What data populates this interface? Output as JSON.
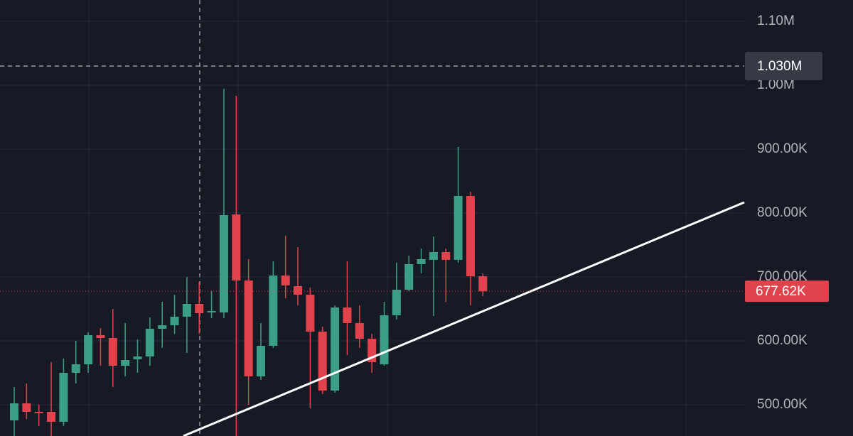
{
  "chart_data": {
    "type": "candlestick",
    "categories": [
      null,
      null,
      null,
      null,
      null,
      null,
      null,
      null,
      null,
      null,
      null,
      null,
      null,
      null,
      null,
      null,
      null,
      null,
      null,
      null,
      null,
      null,
      null,
      null,
      null,
      null,
      null,
      null,
      null,
      null,
      null,
      null,
      null,
      null,
      null,
      null,
      null,
      null,
      null
    ],
    "open": [
      475600,
      502200,
      488900,
      488900,
      473300,
      550000,
      563300,
      608900,
      604400,
      561100,
      571100,
      575600,
      618900,
      624400,
      637800,
      657800,
      644400,
      644400,
      797800,
      694400,
      544400,
      592200,
      702200,
      685600,
      672200,
      614400,
      522200,
      652200,
      627800,
      603300,
      563300,
      640000,
      680000,
      720000,
      726700,
      738900,
      726700,
      826700,
      701100
    ],
    "high": [
      527800,
      533300,
      500000,
      566700,
      572200,
      600000,
      613300,
      620000,
      650000,
      627800,
      602200,
      636700,
      661100,
      672200,
      700000,
      692200,
      677800,
      994400,
      983300,
      727800,
      627800,
      724400,
      764400,
      746700,
      683300,
      622200,
      655600,
      724400,
      655600,
      611100,
      661100,
      722200,
      733300,
      744400,
      763300,
      744400,
      903300,
      833300,
      705600
    ],
    "low": [
      451100,
      477800,
      466700,
      451100,
      466700,
      533300,
      550000,
      561100,
      527800,
      544400,
      550000,
      561100,
      588900,
      611100,
      581100,
      611100,
      635600,
      635600,
      451100,
      500000,
      538900,
      588900,
      666700,
      655600,
      494400,
      516700,
      518900,
      577800,
      588900,
      550000,
      561100,
      633300,
      677800,
      705600,
      638900,
      661100,
      722200,
      655600,
      670000
    ],
    "close": [
      502200,
      488900,
      486700,
      473300,
      550000,
      563300,
      608900,
      604400,
      561100,
      570000,
      575600,
      618900,
      624400,
      637800,
      657800,
      643300,
      646700,
      796700,
      694400,
      544400,
      592200,
      702200,
      686700,
      672200,
      614400,
      522200,
      652200,
      627800,
      603300,
      566700,
      640000,
      680000,
      720000,
      727800,
      738900,
      726700,
      826700,
      701100,
      677620
    ],
    "up_color": "#3b9f87",
    "down_color": "#e0434c",
    "ylim": [
      451111,
      1133333
    ],
    "yticks": [
      {
        "value": 500000,
        "label": "500.00K"
      },
      {
        "value": 600000,
        "label": "600.00K"
      },
      {
        "value": 700000,
        "label": "700.00K"
      },
      {
        "value": 800000,
        "label": "800.00K"
      },
      {
        "value": 900000,
        "label": "900.00K"
      },
      {
        "value": 1000000,
        "label": "1.00M"
      },
      {
        "value": 1100000,
        "label": "1.10M"
      }
    ],
    "grid": true,
    "crosshair": {
      "value": 1030000,
      "label": "1.030M"
    },
    "last_price": {
      "value": 677620,
      "label": "677.62K"
    }
  }
}
